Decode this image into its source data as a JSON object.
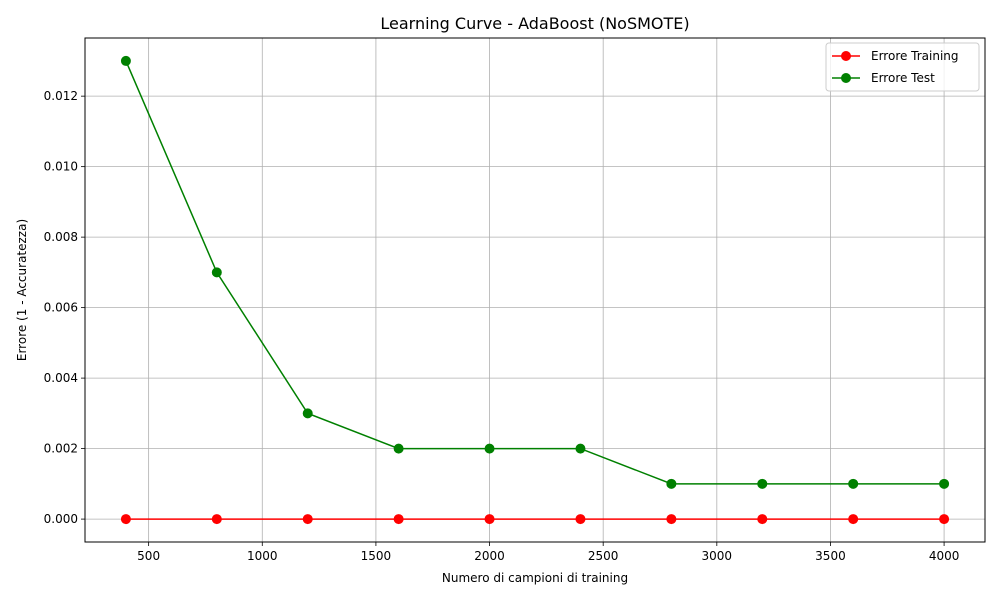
{
  "chart_data": {
    "type": "line",
    "title": "Learning Curve - AdaBoost (NoSMOTE)",
    "xlabel": "Numero di campioni di training",
    "ylabel": "Errore (1 - Accuratezza)",
    "x": [
      400,
      800,
      1200,
      1600,
      2000,
      2400,
      2800,
      3200,
      3600,
      4000
    ],
    "xlim": [
      220,
      4180
    ],
    "ylim": [
      -0.00065,
      0.01365
    ],
    "xticks": [
      500,
      1000,
      1500,
      2000,
      2500,
      3000,
      3500,
      4000
    ],
    "yticks": [
      0.0,
      0.002,
      0.004,
      0.006,
      0.008,
      0.01,
      0.012
    ],
    "xtick_labels": [
      "500",
      "1000",
      "1500",
      "2000",
      "2500",
      "3000",
      "3500",
      "4000"
    ],
    "ytick_labels": [
      "0.000",
      "0.002",
      "0.004",
      "0.006",
      "0.008",
      "0.010",
      "0.012"
    ],
    "grid": true,
    "legend_position": "top-right",
    "series": [
      {
        "name": "Errore Training",
        "color": "#ff0000",
        "marker": "circle",
        "values": [
          0,
          0,
          0,
          0,
          0,
          0,
          0,
          0,
          0,
          0
        ]
      },
      {
        "name": "Errore Test",
        "color": "#008000",
        "marker": "circle",
        "values": [
          0.013,
          0.007,
          0.003,
          0.002,
          0.002,
          0.002,
          0.001,
          0.001,
          0.001,
          0.001
        ]
      }
    ]
  }
}
